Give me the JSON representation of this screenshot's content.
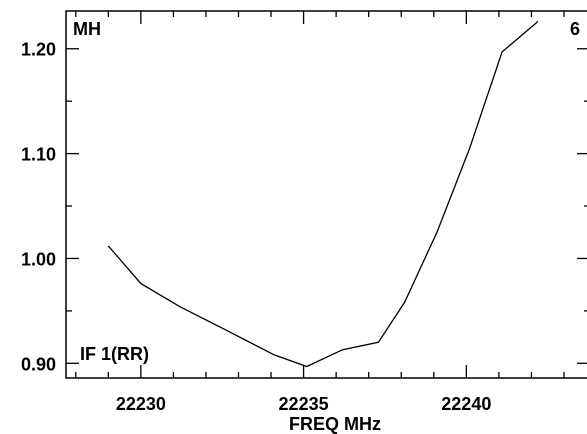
{
  "chart_data": {
    "type": "line",
    "title": "",
    "xlabel": "FREQ MHz",
    "ylabel": "",
    "xlim": [
      22227.7,
      22243.8
    ],
    "ylim": [
      0.886,
      1.236
    ],
    "xticks": [
      22230,
      22235,
      22240
    ],
    "xtick_labels": [
      "22230",
      "22235",
      "22240"
    ],
    "yticks": [
      0.9,
      1.0,
      1.1,
      1.2
    ],
    "ytick_labels": [
      "0.90",
      "1.00",
      "1.10",
      "1.20"
    ],
    "grid": false,
    "corner_labels": {
      "top_left": "MH",
      "top_right": "6",
      "bottom_left": "IF 1(RR)"
    },
    "series": [
      {
        "x": [
          22229.0,
          22230.0,
          22231.2,
          22232.6,
          22234.1,
          22235.1,
          22236.2,
          22237.3,
          22238.1,
          22239.1,
          22240.1,
          22241.1,
          22242.2
        ],
        "y": [
          1.012,
          0.976,
          0.954,
          0.932,
          0.908,
          0.897,
          0.913,
          0.92,
          0.958,
          1.025,
          1.105,
          1.197,
          1.226
        ]
      }
    ],
    "line_color": "#000000"
  }
}
